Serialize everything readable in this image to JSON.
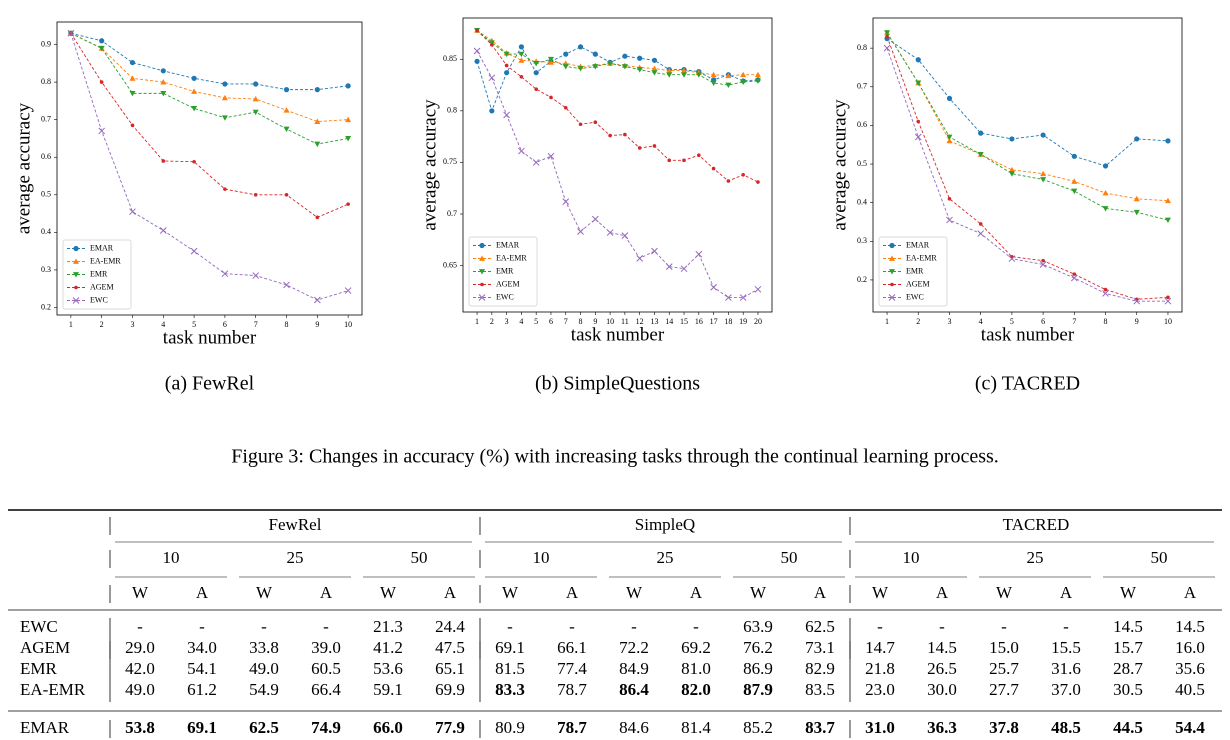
{
  "chart_data": [
    {
      "type": "line",
      "caption": "(a)  FewRel",
      "xlabel": "task number",
      "ylabel": "average accuracy",
      "x": [
        1,
        2,
        3,
        4,
        5,
        6,
        7,
        8,
        9,
        10
      ],
      "xlim": [
        0.55,
        10.45
      ],
      "xticks": [
        1,
        2,
        3,
        4,
        5,
        6,
        7,
        8,
        9,
        10
      ],
      "ylim": [
        0.18,
        0.96
      ],
      "yticks": [
        0.2,
        0.3,
        0.4,
        0.5,
        0.6,
        0.7,
        0.8,
        0.9
      ],
      "legend": "lower left",
      "series": [
        {
          "name": "EMAR",
          "color": "#1f77b4",
          "marker": "o",
          "values": [
            0.93,
            0.91,
            0.852,
            0.83,
            0.81,
            0.795,
            0.795,
            0.78,
            0.78,
            0.79
          ]
        },
        {
          "name": "EA-EMR",
          "color": "#ff7f0e",
          "marker": "^",
          "values": [
            0.93,
            0.89,
            0.81,
            0.8,
            0.775,
            0.758,
            0.755,
            0.725,
            0.695,
            0.7
          ]
        },
        {
          "name": "EMR",
          "color": "#2ca02c",
          "marker": "v",
          "values": [
            0.93,
            0.89,
            0.77,
            0.77,
            0.73,
            0.705,
            0.72,
            0.675,
            0.635,
            0.65
          ]
        },
        {
          "name": "AGEM",
          "color": "#d62728",
          "marker": "*",
          "values": [
            0.93,
            0.8,
            0.685,
            0.59,
            0.588,
            0.515,
            0.5,
            0.5,
            0.44,
            0.475
          ]
        },
        {
          "name": "EWC",
          "color": "#9467bd",
          "marker": "x",
          "values": [
            0.93,
            0.67,
            0.455,
            0.405,
            0.35,
            0.29,
            0.285,
            0.26,
            0.22,
            0.245
          ]
        }
      ]
    },
    {
      "type": "line",
      "caption": "(b)  SimpleQuestions",
      "xlabel": "task number",
      "ylabel": "average accuracy",
      "x": [
        1,
        2,
        3,
        4,
        5,
        6,
        7,
        8,
        9,
        10,
        11,
        12,
        13,
        14,
        15,
        16,
        17,
        18,
        19,
        20
      ],
      "xlim": [
        0.05,
        20.95
      ],
      "xticks": [
        1,
        2,
        3,
        4,
        5,
        6,
        7,
        8,
        9,
        10,
        11,
        12,
        13,
        14,
        15,
        16,
        17,
        18,
        19,
        20
      ],
      "ylim": [
        0.605,
        0.89
      ],
      "yticks": [
        0.65,
        0.7,
        0.75,
        0.8,
        0.85
      ],
      "legend": "lower left",
      "series": [
        {
          "name": "EMAR",
          "color": "#1f77b4",
          "marker": "o",
          "values": [
            0.848,
            0.8,
            0.837,
            0.862,
            0.837,
            0.848,
            0.855,
            0.862,
            0.855,
            0.847,
            0.853,
            0.851,
            0.849,
            0.84,
            0.84,
            0.838,
            0.83,
            0.835,
            0.829,
            0.83
          ]
        },
        {
          "name": "EA-EMR",
          "color": "#ff7f0e",
          "marker": "^",
          "values": [
            0.878,
            0.868,
            0.856,
            0.849,
            0.848,
            0.847,
            0.846,
            0.843,
            0.844,
            0.846,
            0.844,
            0.842,
            0.841,
            0.839,
            0.839,
            0.837,
            0.835,
            0.834,
            0.835,
            0.835
          ]
        },
        {
          "name": "EMR",
          "color": "#2ca02c",
          "marker": "v",
          "values": [
            0.878,
            0.866,
            0.855,
            0.855,
            0.846,
            0.85,
            0.843,
            0.841,
            0.843,
            0.846,
            0.843,
            0.84,
            0.837,
            0.835,
            0.835,
            0.835,
            0.827,
            0.825,
            0.828,
            0.829
          ]
        },
        {
          "name": "AGEM",
          "color": "#d62728",
          "marker": "*",
          "values": [
            0.878,
            0.864,
            0.844,
            0.833,
            0.821,
            0.813,
            0.803,
            0.787,
            0.789,
            0.776,
            0.777,
            0.764,
            0.766,
            0.752,
            0.752,
            0.757,
            0.744,
            0.732,
            0.738,
            0.731
          ]
        },
        {
          "name": "EWC",
          "color": "#9467bd",
          "marker": "x",
          "values": [
            0.858,
            0.832,
            0.796,
            0.761,
            0.75,
            0.756,
            0.712,
            0.683,
            0.695,
            0.682,
            0.679,
            0.657,
            0.664,
            0.649,
            0.647,
            0.661,
            0.629,
            0.619,
            0.619,
            0.627
          ]
        }
      ]
    },
    {
      "type": "line",
      "caption": "(c)  TACRED",
      "xlabel": "task number",
      "ylabel": "average accuracy",
      "x": [
        1,
        2,
        3,
        4,
        5,
        6,
        7,
        8,
        9,
        10
      ],
      "xlim": [
        0.55,
        10.45
      ],
      "xticks": [
        1,
        2,
        3,
        4,
        5,
        6,
        7,
        8,
        9,
        10
      ],
      "ylim": [
        0.117,
        0.878
      ],
      "yticks": [
        0.2,
        0.3,
        0.4,
        0.5,
        0.6,
        0.7,
        0.8
      ],
      "legend": "lower left",
      "series": [
        {
          "name": "EMAR",
          "color": "#1f77b4",
          "marker": "o",
          "values": [
            0.825,
            0.77,
            0.67,
            0.58,
            0.565,
            0.575,
            0.52,
            0.495,
            0.565,
            0.56
          ]
        },
        {
          "name": "EA-EMR",
          "color": "#ff7f0e",
          "marker": "^",
          "values": [
            0.84,
            0.71,
            0.56,
            0.525,
            0.485,
            0.475,
            0.455,
            0.425,
            0.41,
            0.405
          ]
        },
        {
          "name": "EMR",
          "color": "#2ca02c",
          "marker": "v",
          "values": [
            0.84,
            0.71,
            0.57,
            0.525,
            0.475,
            0.46,
            0.43,
            0.385,
            0.375,
            0.355
          ]
        },
        {
          "name": "AGEM",
          "color": "#d62728",
          "marker": "*",
          "values": [
            0.83,
            0.61,
            0.41,
            0.345,
            0.26,
            0.25,
            0.215,
            0.175,
            0.15,
            0.155
          ]
        },
        {
          "name": "EWC",
          "color": "#9467bd",
          "marker": "x",
          "values": [
            0.8,
            0.57,
            0.355,
            0.32,
            0.255,
            0.24,
            0.205,
            0.165,
            0.145,
            0.145
          ]
        }
      ]
    }
  ],
  "figure_caption": "Figure 3: Changes in accuracy (%) with increasing tasks through the continual learning process.",
  "table": {
    "groups": [
      "FewRel",
      "SimpleQ",
      "TACRED"
    ],
    "splits": [
      "10",
      "25",
      "50"
    ],
    "metrics": [
      "W",
      "A"
    ],
    "rows": [
      {
        "method": "EWC",
        "cells": [
          "-",
          "-",
          "-",
          "-",
          "21.3",
          "24.4",
          "-",
          "-",
          "-",
          "-",
          "63.9",
          "62.5",
          "-",
          "-",
          "-",
          "-",
          "14.5",
          "14.5"
        ]
      },
      {
        "method": "AGEM",
        "cells": [
          "29.0",
          "34.0",
          "33.8",
          "39.0",
          "41.2",
          "47.5",
          "69.1",
          "66.1",
          "72.2",
          "69.2",
          "76.2",
          "73.1",
          "14.7",
          "14.5",
          "15.0",
          "15.5",
          "15.7",
          "16.0"
        ]
      },
      {
        "method": "EMR",
        "cells": [
          "42.0",
          "54.1",
          "49.0",
          "60.5",
          "53.6",
          "65.1",
          "81.5",
          "77.4",
          "84.9",
          "81.0",
          "86.9",
          "82.9",
          "21.8",
          "26.5",
          "25.7",
          "31.6",
          "28.7",
          "35.6"
        ]
      },
      {
        "method": "EA-EMR",
        "cells": [
          "49.0",
          "61.2",
          "54.9",
          "66.4",
          "59.1",
          "69.9",
          {
            "text": "83.3",
            "bold": true
          },
          "78.7",
          {
            "text": "86.4",
            "bold": true
          },
          {
            "text": "82.0",
            "bold": true
          },
          {
            "text": "87.9",
            "bold": true
          },
          "83.5",
          "23.0",
          "30.0",
          "27.7",
          "37.0",
          "30.5",
          "40.5"
        ]
      },
      {
        "method": "EMAR",
        "cells": [
          {
            "text": "53.8",
            "bold": true
          },
          {
            "text": "69.1",
            "bold": true
          },
          {
            "text": "62.5",
            "bold": true
          },
          {
            "text": "74.9",
            "bold": true
          },
          {
            "text": "66.0",
            "bold": true
          },
          {
            "text": "77.9",
            "bold": true
          },
          "80.9",
          {
            "text": "78.7",
            "bold": true
          },
          "84.6",
          "81.4",
          "85.2",
          {
            "text": "83.7",
            "bold": true
          },
          {
            "text": "31.0",
            "bold": true
          },
          {
            "text": "36.3",
            "bold": true
          },
          {
            "text": "37.8",
            "bold": true
          },
          {
            "text": "48.5",
            "bold": true
          },
          {
            "text": "44.5",
            "bold": true
          },
          {
            "text": "54.4",
            "bold": true
          }
        ]
      }
    ]
  }
}
